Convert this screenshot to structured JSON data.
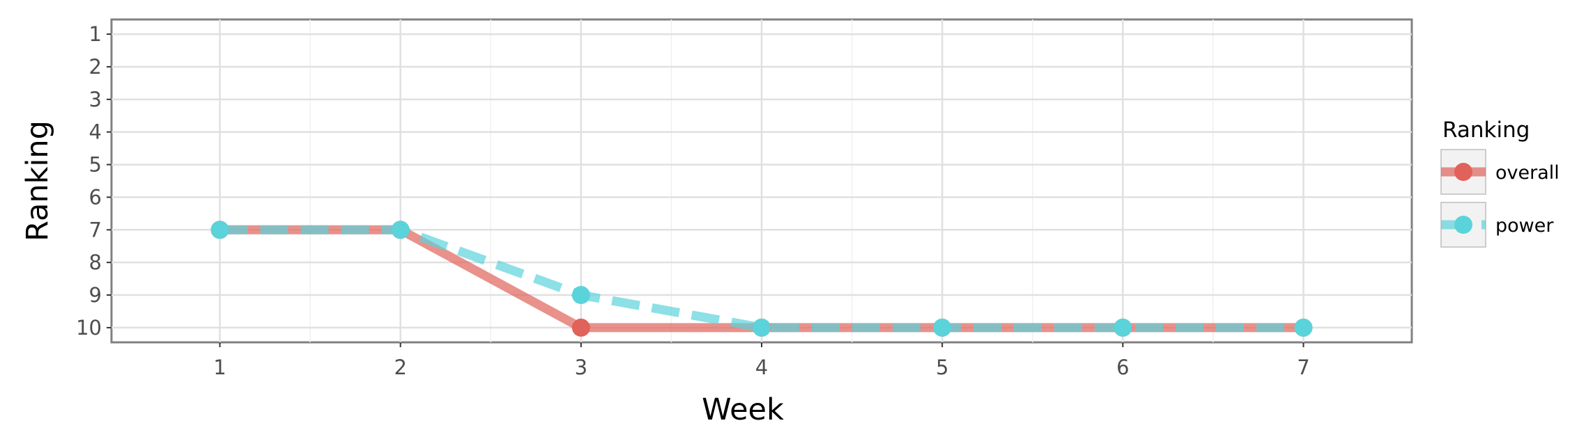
{
  "chart_data": {
    "type": "line",
    "title": "",
    "xlabel": "Week",
    "ylabel": "Ranking",
    "x": [
      1,
      2,
      3,
      4,
      5,
      6,
      7
    ],
    "xlim": [
      0.4,
      7.6
    ],
    "ylim": [
      10.45,
      0.55
    ],
    "y_reversed": true,
    "x_ticks": [
      "1",
      "2",
      "3",
      "4",
      "5",
      "6",
      "7"
    ],
    "y_ticks": [
      "1",
      "2",
      "3",
      "4",
      "5",
      "6",
      "7",
      "8",
      "9",
      "10"
    ],
    "grid": true,
    "legend": {
      "title": "Ranking",
      "position": "right"
    },
    "series": [
      {
        "name": "overall",
        "values": [
          7,
          7,
          10,
          10,
          10,
          10,
          10
        ],
        "color": "#E0625A",
        "line_style": "solid"
      },
      {
        "name": "power",
        "values": [
          7,
          7,
          9,
          10,
          10,
          10,
          10
        ],
        "color": "#5BD3DB",
        "line_style": "dashed"
      }
    ]
  }
}
